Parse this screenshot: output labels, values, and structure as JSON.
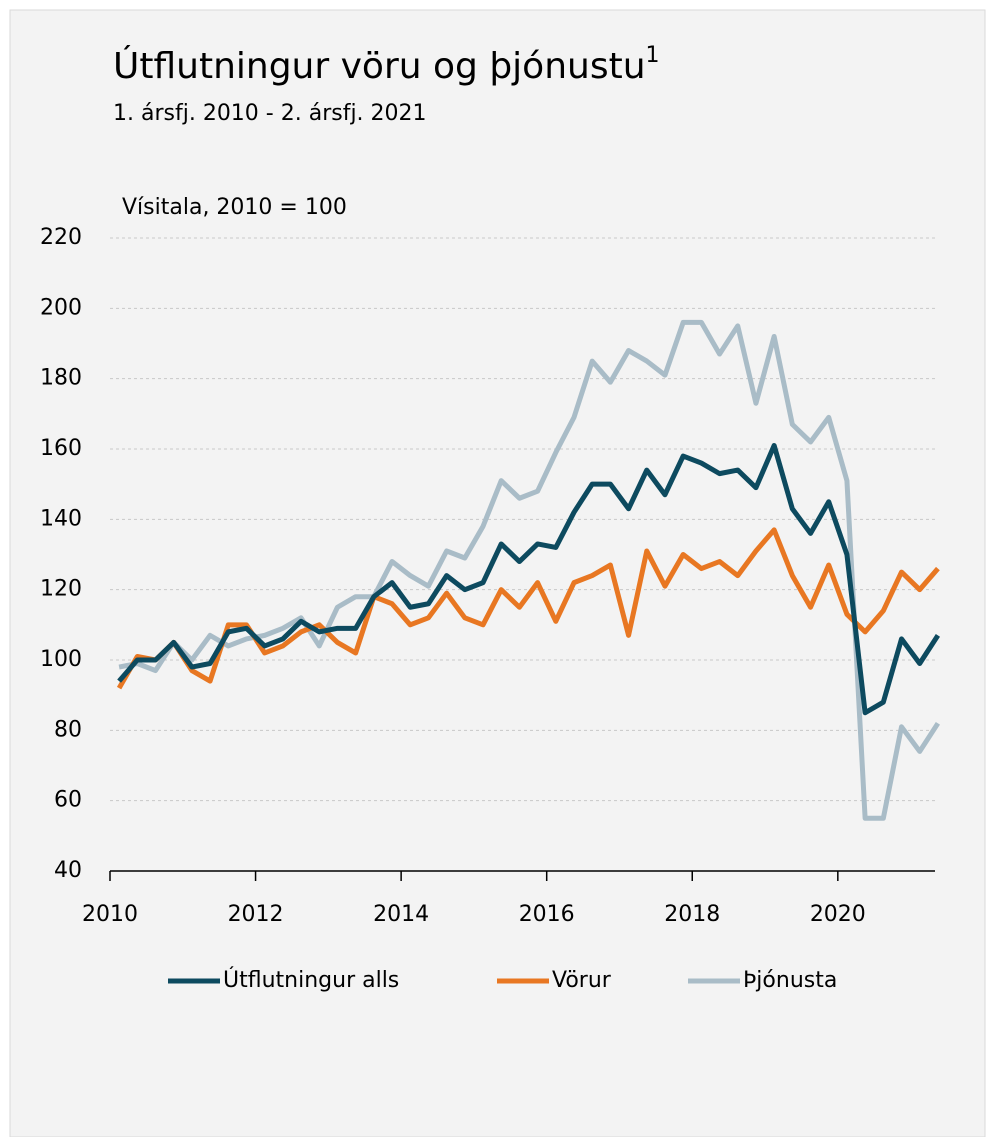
{
  "chart_data": {
    "type": "line",
    "title": "Útflutningur vöru og þjónustu",
    "title_note": "1",
    "subtitle": "1. ársfj. 2010 - 2. ársfj. 2021",
    "y_label": "Vísitala, 2010 = 100",
    "x": [
      2010.125,
      2010.375,
      2010.625,
      2010.875,
      2011.125,
      2011.375,
      2011.625,
      2011.875,
      2012.125,
      2012.375,
      2012.625,
      2012.875,
      2013.125,
      2013.375,
      2013.625,
      2013.875,
      2014.125,
      2014.375,
      2014.625,
      2014.875,
      2015.125,
      2015.375,
      2015.625,
      2015.875,
      2016.125,
      2016.375,
      2016.625,
      2016.875,
      2017.125,
      2017.375,
      2017.625,
      2017.875,
      2018.125,
      2018.375,
      2018.625,
      2018.875,
      2019.125,
      2019.375,
      2019.625,
      2019.875,
      2020.125,
      2020.375,
      2020.625,
      2020.875,
      2021.125,
      2021.375
    ],
    "series": [
      {
        "name": "Útflutningur alls",
        "color": "#0d4a5f",
        "values": [
          94,
          100,
          100,
          105,
          98,
          99,
          108,
          109,
          104,
          106,
          111,
          108,
          109,
          109,
          118,
          122,
          115,
          116,
          124,
          120,
          122,
          133,
          128,
          133,
          132,
          142,
          150,
          150,
          143,
          154,
          147,
          158,
          156,
          153,
          154,
          149,
          161,
          143,
          136,
          145,
          130,
          85,
          88,
          106,
          99,
          107
        ]
      },
      {
        "name": "Vörur",
        "color": "#e87722",
        "values": [
          92,
          101,
          100,
          105,
          97,
          94,
          110,
          110,
          102,
          104,
          108,
          110,
          105,
          102,
          118,
          116,
          110,
          112,
          119,
          112,
          110,
          120,
          115,
          122,
          111,
          122,
          124,
          127,
          107,
          131,
          121,
          130,
          126,
          128,
          124,
          131,
          137,
          124,
          115,
          127,
          113,
          108,
          114,
          125,
          120,
          126
        ]
      },
      {
        "name": "Þjónusta",
        "color": "#a9bcc7",
        "values": [
          98,
          99,
          97,
          105,
          100,
          107,
          104,
          106,
          107,
          109,
          112,
          104,
          115,
          118,
          118,
          128,
          124,
          121,
          131,
          129,
          138,
          151,
          146,
          148,
          159,
          169,
          185,
          179,
          188,
          185,
          181,
          196,
          196,
          187,
          195,
          173,
          192,
          167,
          162,
          169,
          151,
          55,
          55,
          81,
          74,
          82
        ]
      }
    ],
    "xlim": [
      2010,
      2021.5
    ],
    "xticks": [
      2010,
      2012,
      2014,
      2016,
      2018,
      2020
    ],
    "ylim": [
      40,
      220
    ],
    "yticks": [
      40,
      60,
      80,
      100,
      120,
      140,
      160,
      180,
      200,
      220
    ],
    "grid": true,
    "legend": "bottom"
  }
}
